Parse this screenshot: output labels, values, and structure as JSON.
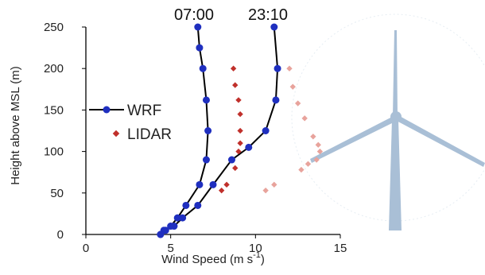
{
  "chart_data": {
    "type": "scatter",
    "xlabel": "Wind Speed (m s",
    "xlabel_sup": "-1",
    "xlabel_close": ")",
    "ylabel": "Height above MSL (m)",
    "xlim": [
      0,
      15
    ],
    "ylim": [
      0,
      250
    ],
    "xticks": [
      "0",
      "5",
      "10",
      "15"
    ],
    "yticks": [
      "0",
      "50",
      "100",
      "150",
      "200",
      "250"
    ],
    "grid": false,
    "legend_position": "left",
    "annotations": [
      "07:00",
      "23:10"
    ],
    "series": [
      {
        "name": "WRF",
        "style": "line-markers",
        "color": "#1f2fbf",
        "x": [
          4.4,
          4.6,
          5.0,
          5.4,
          5.9,
          6.7,
          7.1,
          7.2,
          7.1,
          6.9,
          6.7,
          6.6
        ],
        "y": [
          0,
          5,
          10,
          20,
          35,
          60,
          90,
          125,
          162,
          200,
          225,
          250
        ]
      },
      {
        "name": "",
        "style": "line-markers",
        "color": "#1f2fbf",
        "x": [
          4.4,
          4.7,
          5.2,
          5.7,
          6.6,
          7.5,
          8.6,
          9.6,
          10.6,
          11.2,
          11.3,
          11.1
        ],
        "y": [
          0,
          5,
          10,
          20,
          35,
          60,
          90,
          105,
          125,
          162,
          200,
          250
        ]
      },
      {
        "name": "LIDAR",
        "style": "markers",
        "color": "#c0302b",
        "x": [
          8.7,
          8.8,
          9.0,
          9.1,
          9.1,
          9.1,
          9.0,
          8.8,
          8.3,
          8.0
        ],
        "y": [
          200,
          180,
          162,
          145,
          125,
          110,
          100,
          80,
          60,
          53
        ]
      },
      {
        "name": "",
        "style": "markers",
        "color": "#e8a39c",
        "x": [
          12.0,
          12.2,
          12.5,
          12.9,
          13.4,
          13.7,
          13.8,
          13.6,
          13.1,
          12.7,
          11.1,
          10.6
        ],
        "y": [
          200,
          178,
          158,
          140,
          118,
          108,
          100,
          90,
          85,
          78,
          60,
          53
        ]
      }
    ]
  },
  "colors": {
    "turbine": "#a9bfd6",
    "wrf_line": "#000000",
    "wrf_marker": "#1f2fbf",
    "lidar": "#c0302b"
  }
}
